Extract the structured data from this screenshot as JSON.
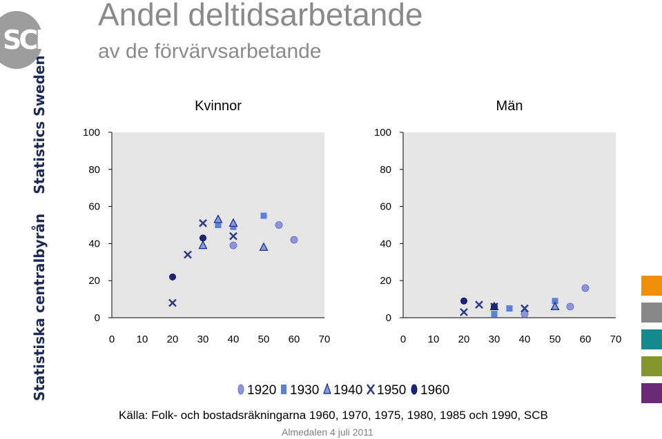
{
  "header": {
    "title": "Andel deltidsarbetande",
    "subtitle": "av de förvärvsarbetande"
  },
  "logo": {
    "text": "SCB"
  },
  "sidebar": {
    "text_1": "Statistiska centralbyrån",
    "text_2": "Statistics Sweden"
  },
  "accent_swatches": [
    "#f0900a",
    "#878787",
    "#138a8e",
    "#84962c",
    "#6b2a77"
  ],
  "source_text": "Källa: Folk- och bostadsräkningarna 1960, 1970, 1975, 1980, 1985 och 1990, SCB",
  "footer_text": "Almedalen 4 juli 2011",
  "chart_data": [
    {
      "type": "scatter",
      "title": "Kvinnor",
      "xlim": [
        0,
        70
      ],
      "ylim": [
        0,
        100
      ],
      "xticks": [
        0,
        10,
        20,
        30,
        40,
        50,
        60,
        70
      ],
      "yticks": [
        0,
        20,
        40,
        60,
        80,
        100
      ],
      "grid": false,
      "series": [
        {
          "name": "1920",
          "points": [
            [
              40,
              39
            ],
            [
              55,
              50
            ],
            [
              60,
              42
            ]
          ]
        },
        {
          "name": "1930",
          "points": [
            [
              35,
              50
            ],
            [
              40,
              49
            ],
            [
              50,
              55
            ]
          ]
        },
        {
          "name": "1940",
          "points": [
            [
              30,
              39
            ],
            [
              35,
              53
            ],
            [
              40,
              51
            ],
            [
              50,
              38
            ]
          ]
        },
        {
          "name": "1950",
          "points": [
            [
              20,
              8
            ],
            [
              25,
              34
            ],
            [
              30,
              51
            ],
            [
              40,
              44
            ]
          ]
        },
        {
          "name": "1960",
          "points": [
            [
              20,
              22
            ],
            [
              30,
              43
            ]
          ]
        }
      ]
    },
    {
      "type": "scatter",
      "title": "Män",
      "xlim": [
        0,
        70
      ],
      "ylim": [
        0,
        100
      ],
      "xticks": [
        0,
        10,
        20,
        30,
        40,
        50,
        60,
        70
      ],
      "yticks": [
        0,
        20,
        40,
        60,
        80,
        100
      ],
      "grid": false,
      "series": [
        {
          "name": "1920",
          "points": [
            [
              40,
              2
            ],
            [
              55,
              6
            ],
            [
              60,
              16
            ]
          ]
        },
        {
          "name": "1930",
          "points": [
            [
              30,
              2
            ],
            [
              35,
              5
            ],
            [
              50,
              9
            ]
          ]
        },
        {
          "name": "1940",
          "points": [
            [
              30,
              6
            ],
            [
              50,
              6
            ]
          ]
        },
        {
          "name": "1950",
          "points": [
            [
              20,
              3
            ],
            [
              25,
              7
            ],
            [
              30,
              6
            ],
            [
              40,
              5
            ]
          ]
        },
        {
          "name": "1960",
          "points": [
            [
              20,
              9
            ],
            [
              30,
              6
            ]
          ]
        }
      ]
    }
  ],
  "legend": {
    "position": "bottom",
    "items": [
      {
        "label": "1920",
        "marker": "circle",
        "color": "#8c96e0"
      },
      {
        "label": "1930",
        "marker": "square",
        "color": "#5b7fdc"
      },
      {
        "label": "1940",
        "marker": "triangle",
        "color": "#7d9cf0"
      },
      {
        "label": "1950",
        "marker": "x",
        "color": "#2b3a8c"
      },
      {
        "label": "1960",
        "marker": "dot",
        "color": "#1a237e"
      }
    ]
  }
}
